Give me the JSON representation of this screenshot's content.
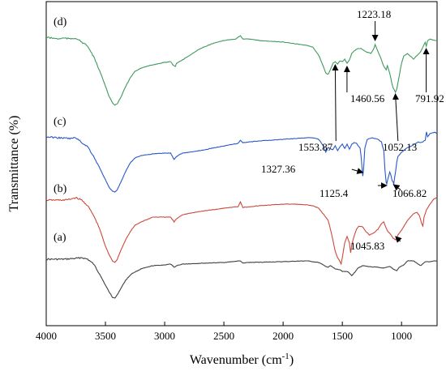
{
  "chart_data": {
    "type": "line",
    "xlabel": "Wavenumber (cm",
    "xlabel_sup": "-1",
    "xlabel_end": ")",
    "ylabel": "Transmittance (%)",
    "xlim": [
      4000,
      700
    ],
    "x_reversed": true,
    "x_ticks": [
      4000,
      3500,
      3000,
      2500,
      2000,
      1500,
      1000
    ],
    "y_ticks_shown": false,
    "grid": false,
    "legend": "none",
    "series": [
      {
        "label": "(a)",
        "color": "#404040",
        "points": [
          [
            4000,
            320
          ],
          [
            3850,
            320
          ],
          [
            3750,
            319
          ],
          [
            3700,
            318
          ],
          [
            3650,
            320
          ],
          [
            3600,
            326
          ],
          [
            3550,
            338
          ],
          [
            3500,
            352
          ],
          [
            3470,
            360
          ],
          [
            3440,
            367
          ],
          [
            3420,
            368
          ],
          [
            3400,
            364
          ],
          [
            3370,
            356
          ],
          [
            3330,
            346
          ],
          [
            3280,
            338
          ],
          [
            3200,
            332
          ],
          [
            3100,
            328
          ],
          [
            3000,
            327
          ],
          [
            2950,
            326
          ],
          [
            2920,
            330
          ],
          [
            2900,
            328
          ],
          [
            2850,
            326
          ],
          [
            2700,
            325
          ],
          [
            2500,
            324
          ],
          [
            2360,
            322
          ],
          [
            2340,
            325
          ],
          [
            2300,
            324
          ],
          [
            2000,
            323
          ],
          [
            1800,
            322
          ],
          [
            1700,
            324
          ],
          [
            1650,
            328
          ],
          [
            1620,
            330
          ],
          [
            1600,
            328
          ],
          [
            1560,
            332
          ],
          [
            1520,
            333
          ],
          [
            1500,
            335
          ],
          [
            1470,
            335
          ],
          [
            1450,
            336
          ],
          [
            1420,
            340
          ],
          [
            1400,
            337
          ],
          [
            1370,
            331
          ],
          [
            1330,
            328
          ],
          [
            1280,
            329
          ],
          [
            1200,
            330
          ],
          [
            1150,
            331
          ],
          [
            1100,
            329
          ],
          [
            1060,
            333
          ],
          [
            1040,
            334
          ],
          [
            1020,
            330
          ],
          [
            980,
            327
          ],
          [
            950,
            322
          ],
          [
            900,
            322
          ],
          [
            870,
            325
          ],
          [
            840,
            328
          ],
          [
            800,
            323
          ],
          [
            760,
            323
          ],
          [
            720,
            322
          ],
          [
            700,
            322
          ]
        ]
      },
      {
        "label": "(b)",
        "color": "#cc4a3b",
        "points": [
          [
            4000,
            247
          ],
          [
            3900,
            247
          ],
          [
            3850,
            247
          ],
          [
            3800,
            246
          ],
          [
            3750,
            244
          ],
          [
            3700,
            247
          ],
          [
            3650,
            254
          ],
          [
            3600,
            266
          ],
          [
            3550,
            282
          ],
          [
            3500,
            304
          ],
          [
            3470,
            314
          ],
          [
            3440,
            322
          ],
          [
            3420,
            324
          ],
          [
            3400,
            320
          ],
          [
            3370,
            309
          ],
          [
            3330,
            296
          ],
          [
            3290,
            286
          ],
          [
            3250,
            278
          ],
          [
            3200,
            274
          ],
          [
            3100,
            268
          ],
          [
            3000,
            268
          ],
          [
            2950,
            268
          ],
          [
            2920,
            274
          ],
          [
            2900,
            270
          ],
          [
            2850,
            265
          ],
          [
            2700,
            261
          ],
          [
            2500,
            257
          ],
          [
            2380,
            255
          ],
          [
            2360,
            249
          ],
          [
            2340,
            256
          ],
          [
            2200,
            254
          ],
          [
            2000,
            252
          ],
          [
            1900,
            252
          ],
          [
            1800,
            253
          ],
          [
            1750,
            254
          ],
          [
            1700,
            257
          ],
          [
            1650,
            266
          ],
          [
            1620,
            272
          ],
          [
            1600,
            283
          ],
          [
            1580,
            296
          ],
          [
            1560,
            310
          ],
          [
            1540,
            318
          ],
          [
            1520,
            323
          ],
          [
            1510,
            326
          ],
          [
            1500,
            318
          ],
          [
            1480,
            300
          ],
          [
            1460,
            292
          ],
          [
            1440,
            300
          ],
          [
            1430,
            312
          ],
          [
            1420,
            302
          ],
          [
            1400,
            291
          ],
          [
            1380,
            283
          ],
          [
            1360,
            279
          ],
          [
            1330,
            280
          ],
          [
            1300,
            286
          ],
          [
            1270,
            290
          ],
          [
            1230,
            287
          ],
          [
            1200,
            283
          ],
          [
            1170,
            276
          ],
          [
            1150,
            274
          ],
          [
            1120,
            285
          ],
          [
            1100,
            288
          ],
          [
            1070,
            294
          ],
          [
            1050,
            296
          ],
          [
            1030,
            290
          ],
          [
            1000,
            284
          ],
          [
            950,
            272
          ],
          [
            900,
            264
          ],
          [
            870,
            262
          ],
          [
            850,
            266
          ],
          [
            830,
            276
          ],
          [
            820,
            279
          ],
          [
            810,
            268
          ],
          [
            790,
            259
          ],
          [
            760,
            252
          ],
          [
            730,
            246
          ],
          [
            700,
            244
          ]
        ]
      },
      {
        "label": "(c)",
        "color": "#2a57c9",
        "points": [
          [
            4000,
            169
          ],
          [
            3900,
            170
          ],
          [
            3800,
            171
          ],
          [
            3750,
            170
          ],
          [
            3700,
            176
          ],
          [
            3650,
            181
          ],
          [
            3600,
            193
          ],
          [
            3550,
            207
          ],
          [
            3500,
            222
          ],
          [
            3470,
            231
          ],
          [
            3440,
            236
          ],
          [
            3420,
            237
          ],
          [
            3400,
            234
          ],
          [
            3370,
            225
          ],
          [
            3330,
            212
          ],
          [
            3290,
            201
          ],
          [
            3250,
            195
          ],
          [
            3200,
            192
          ],
          [
            3100,
            190
          ],
          [
            3000,
            189
          ],
          [
            2950,
            189
          ],
          [
            2920,
            197
          ],
          [
            2900,
            193
          ],
          [
            2850,
            189
          ],
          [
            2700,
            186
          ],
          [
            2500,
            180
          ],
          [
            2380,
            177
          ],
          [
            2360,
            173
          ],
          [
            2340,
            176
          ],
          [
            2200,
            174
          ],
          [
            2000,
            172
          ],
          [
            1900,
            171
          ],
          [
            1800,
            170
          ],
          [
            1750,
            170
          ],
          [
            1700,
            172
          ],
          [
            1660,
            180
          ],
          [
            1640,
            188
          ],
          [
            1620,
            182
          ],
          [
            1600,
            184
          ],
          [
            1580,
            185
          ],
          [
            1560,
            180
          ],
          [
            1540,
            186
          ],
          [
            1520,
            181
          ],
          [
            1500,
            178
          ],
          [
            1480,
            183
          ],
          [
            1460,
            178
          ],
          [
            1440,
            184
          ],
          [
            1420,
            178
          ],
          [
            1400,
            176
          ],
          [
            1380,
            177
          ],
          [
            1350,
            183
          ],
          [
            1340,
            195
          ],
          [
            1330,
            214
          ],
          [
            1327,
            217
          ],
          [
            1320,
            208
          ],
          [
            1310,
            183
          ],
          [
            1290,
            172
          ],
          [
            1250,
            170
          ],
          [
            1200,
            172
          ],
          [
            1170,
            175
          ],
          [
            1150,
            186
          ],
          [
            1140,
            209
          ],
          [
            1130,
            225
          ],
          [
            1125,
            227
          ],
          [
            1115,
            221
          ],
          [
            1100,
            212
          ],
          [
            1090,
            216
          ],
          [
            1080,
            223
          ],
          [
            1070,
            225
          ],
          [
            1066,
            228
          ],
          [
            1060,
            221
          ],
          [
            1050,
            211
          ],
          [
            1040,
            200
          ],
          [
            1030,
            193
          ],
          [
            1000,
            188
          ],
          [
            960,
            183
          ],
          [
            900,
            179
          ],
          [
            860,
            175
          ],
          [
            840,
            176
          ],
          [
            820,
            175
          ],
          [
            800,
            173
          ],
          [
            790,
            163
          ],
          [
            780,
            169
          ],
          [
            760,
            165
          ],
          [
            720,
            163
          ],
          [
            700,
            165
          ]
        ]
      },
      {
        "label": "(d)",
        "color": "#3f9a5e",
        "points": [
          [
            4000,
            46
          ],
          [
            3900,
            48
          ],
          [
            3850,
            47
          ],
          [
            3800,
            48
          ],
          [
            3750,
            47
          ],
          [
            3700,
            52
          ],
          [
            3650,
            57
          ],
          [
            3600,
            70
          ],
          [
            3550,
            87
          ],
          [
            3500,
            106
          ],
          [
            3470,
            119
          ],
          [
            3440,
            127
          ],
          [
            3420,
            130
          ],
          [
            3400,
            128
          ],
          [
            3370,
            120
          ],
          [
            3330,
            107
          ],
          [
            3290,
            96
          ],
          [
            3250,
            88
          ],
          [
            3200,
            84
          ],
          [
            3100,
            80
          ],
          [
            3000,
            77
          ],
          [
            2950,
            76
          ],
          [
            2930,
            80
          ],
          [
            2910,
            82
          ],
          [
            2900,
            78
          ],
          [
            2850,
            74
          ],
          [
            2700,
            60
          ],
          [
            2600,
            54
          ],
          [
            2500,
            50
          ],
          [
            2400,
            48
          ],
          [
            2360,
            44
          ],
          [
            2340,
            48
          ],
          [
            2300,
            48
          ],
          [
            2200,
            50
          ],
          [
            2000,
            52
          ],
          [
            1900,
            54
          ],
          [
            1800,
            56
          ],
          [
            1750,
            58
          ],
          [
            1700,
            68
          ],
          [
            1660,
            82
          ],
          [
            1640,
            90
          ],
          [
            1620,
            92
          ],
          [
            1600,
            86
          ],
          [
            1580,
            78
          ],
          [
            1560,
            76
          ],
          [
            1540,
            79
          ],
          [
            1520,
            75
          ],
          [
            1500,
            76
          ],
          [
            1480,
            73
          ],
          [
            1460,
            78
          ],
          [
            1440,
            74
          ],
          [
            1420,
            66
          ],
          [
            1400,
            63
          ],
          [
            1370,
            60
          ],
          [
            1340,
            60
          ],
          [
            1300,
            64
          ],
          [
            1260,
            66
          ],
          [
            1240,
            62
          ],
          [
            1223,
            55
          ],
          [
            1210,
            60
          ],
          [
            1180,
            70
          ],
          [
            1150,
            82
          ],
          [
            1130,
            86
          ],
          [
            1120,
            81
          ],
          [
            1100,
            90
          ],
          [
            1080,
            104
          ],
          [
            1070,
            109
          ],
          [
            1060,
            111
          ],
          [
            1052,
            114
          ],
          [
            1040,
            110
          ],
          [
            1020,
            94
          ],
          [
            1000,
            78
          ],
          [
            980,
            69
          ],
          [
            950,
            66
          ],
          [
            920,
            70
          ],
          [
            900,
            73
          ],
          [
            880,
            70
          ],
          [
            860,
            67
          ],
          [
            840,
            64
          ],
          [
            820,
            58
          ],
          [
            800,
            52
          ],
          [
            791,
            57
          ],
          [
            780,
            50
          ],
          [
            760,
            48
          ],
          [
            720,
            50
          ],
          [
            700,
            50
          ]
        ]
      }
    ],
    "annotations": [
      {
        "text": "1223.18",
        "x": 1223.18
      },
      {
        "text": "1553.87",
        "x": 1553.87
      },
      {
        "text": "1460.56",
        "x": 1460.56
      },
      {
        "text": "1052.13",
        "x": 1052.13
      },
      {
        "text": "791.92",
        "x": 791.92
      },
      {
        "text": "1327.36",
        "x": 1327.36
      },
      {
        "text": "1125.4",
        "x": 1125.4
      },
      {
        "text": "1066.82",
        "x": 1066.82
      },
      {
        "text": "1045.83",
        "x": 1045.83
      }
    ]
  }
}
